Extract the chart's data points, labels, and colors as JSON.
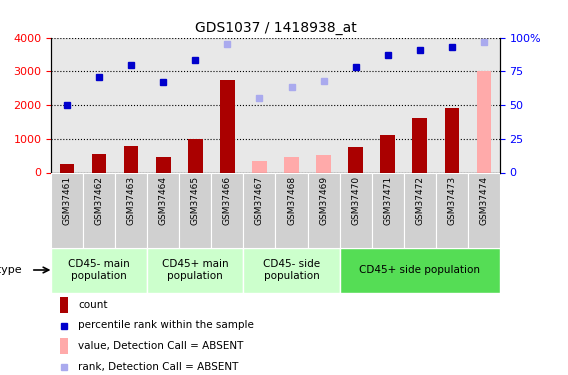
{
  "title": "GDS1037 / 1418938_at",
  "samples": [
    "GSM37461",
    "GSM37462",
    "GSM37463",
    "GSM37464",
    "GSM37465",
    "GSM37466",
    "GSM37467",
    "GSM37468",
    "GSM37469",
    "GSM37470",
    "GSM37471",
    "GSM37472",
    "GSM37473",
    "GSM37474"
  ],
  "count_values": [
    250,
    550,
    780,
    470,
    980,
    2750,
    null,
    null,
    null,
    750,
    1100,
    1620,
    1900,
    null
  ],
  "count_absent": [
    null,
    null,
    null,
    null,
    null,
    null,
    330,
    450,
    530,
    null,
    null,
    null,
    null,
    3000
  ],
  "rank_values": [
    2000,
    2820,
    3180,
    2680,
    3330,
    null,
    null,
    null,
    null,
    3140,
    3480,
    3620,
    3720,
    null
  ],
  "rank_absent": [
    null,
    null,
    null,
    null,
    null,
    3820,
    2220,
    2530,
    2720,
    null,
    null,
    null,
    null,
    3870
  ],
  "cell_groups": [
    {
      "label": "CD45- main\npopulation",
      "start": 0,
      "end": 2,
      "color": "#ccffcc"
    },
    {
      "label": "CD45+ main\npopulation",
      "start": 3,
      "end": 5,
      "color": "#ccffcc"
    },
    {
      "label": "CD45- side\npopulation",
      "start": 6,
      "end": 8,
      "color": "#ccffcc"
    },
    {
      "label": "CD45+ side population",
      "start": 9,
      "end": 13,
      "color": "#55dd55"
    }
  ],
  "bar_color_present": "#aa0000",
  "bar_color_absent": "#ffaaaa",
  "dot_color_present": "#0000cc",
  "dot_color_absent": "#aaaaee",
  "ylim_left": [
    0,
    4000
  ],
  "ylim_right": [
    0,
    100
  ],
  "yticks_left": [
    0,
    1000,
    2000,
    3000,
    4000
  ],
  "yticks_right": [
    0,
    25,
    50,
    75,
    100
  ],
  "bar_width": 0.45,
  "plot_bg": "#e8e8e8",
  "tick_bg": "#d0d0d0"
}
